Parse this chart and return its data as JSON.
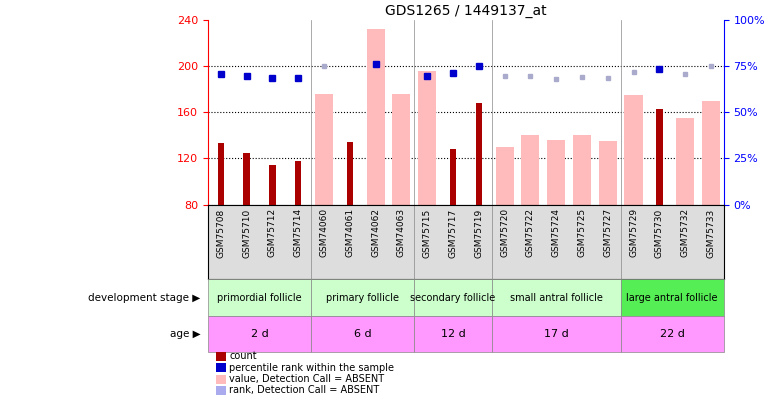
{
  "title": "GDS1265 / 1449137_at",
  "samples": [
    "GSM75708",
    "GSM75710",
    "GSM75712",
    "GSM75714",
    "GSM74060",
    "GSM74061",
    "GSM74062",
    "GSM74063",
    "GSM75715",
    "GSM75717",
    "GSM75719",
    "GSM75720",
    "GSM75722",
    "GSM75724",
    "GSM75725",
    "GSM75727",
    "GSM75729",
    "GSM75730",
    "GSM75732",
    "GSM75733"
  ],
  "count_values": [
    133,
    125,
    114,
    118,
    null,
    134,
    null,
    null,
    null,
    128,
    168,
    null,
    null,
    null,
    null,
    null,
    null,
    163,
    null,
    null
  ],
  "pink_bar_values": [
    null,
    null,
    null,
    null,
    176,
    null,
    232,
    176,
    196,
    null,
    null,
    130,
    140,
    136,
    140,
    135,
    175,
    null,
    155,
    170
  ],
  "blue_dot_values": [
    193,
    192,
    190,
    190,
    null,
    null,
    202,
    null,
    192,
    194,
    200,
    null,
    null,
    null,
    null,
    null,
    null,
    198,
    null,
    null
  ],
  "lavender_dot_values": [
    null,
    null,
    null,
    null,
    200,
    null,
    null,
    null,
    null,
    null,
    null,
    192,
    192,
    189,
    191,
    190,
    195,
    null,
    193,
    200
  ],
  "ylim_left": [
    80,
    240
  ],
  "ylim_right": [
    0,
    100
  ],
  "yticks_left": [
    80,
    120,
    160,
    200,
    240
  ],
  "yticks_right": [
    0,
    25,
    50,
    75,
    100
  ],
  "hgrid_lines": [
    120,
    160,
    200
  ],
  "group_starts": [
    0,
    4,
    8,
    11,
    16
  ],
  "group_ends": [
    4,
    8,
    11,
    16,
    20
  ],
  "group_labels": [
    "primordial follicle",
    "primary follicle",
    "secondary follicle",
    "small antral follicle",
    "large antral follicle"
  ],
  "group_dev_colors": [
    "#ccffcc",
    "#ccffcc",
    "#ccffcc",
    "#ccffcc",
    "#55ee55"
  ],
  "age_labels": [
    "2 d",
    "6 d",
    "12 d",
    "17 d",
    "22 d"
  ],
  "age_color": "#ff99ff",
  "legend_items": [
    {
      "label": "count",
      "color": "#aa0000"
    },
    {
      "label": "percentile rank within the sample",
      "color": "#0000cc"
    },
    {
      "label": "value, Detection Call = ABSENT",
      "color": "#ffbbbb"
    },
    {
      "label": "rank, Detection Call = ABSENT",
      "color": "#aaaaee"
    }
  ],
  "color_count": "#aa0000",
  "color_pink": "#ffbbbb",
  "color_blue_dot": "#0000cc",
  "color_lavender_dot": "#aaaacc"
}
